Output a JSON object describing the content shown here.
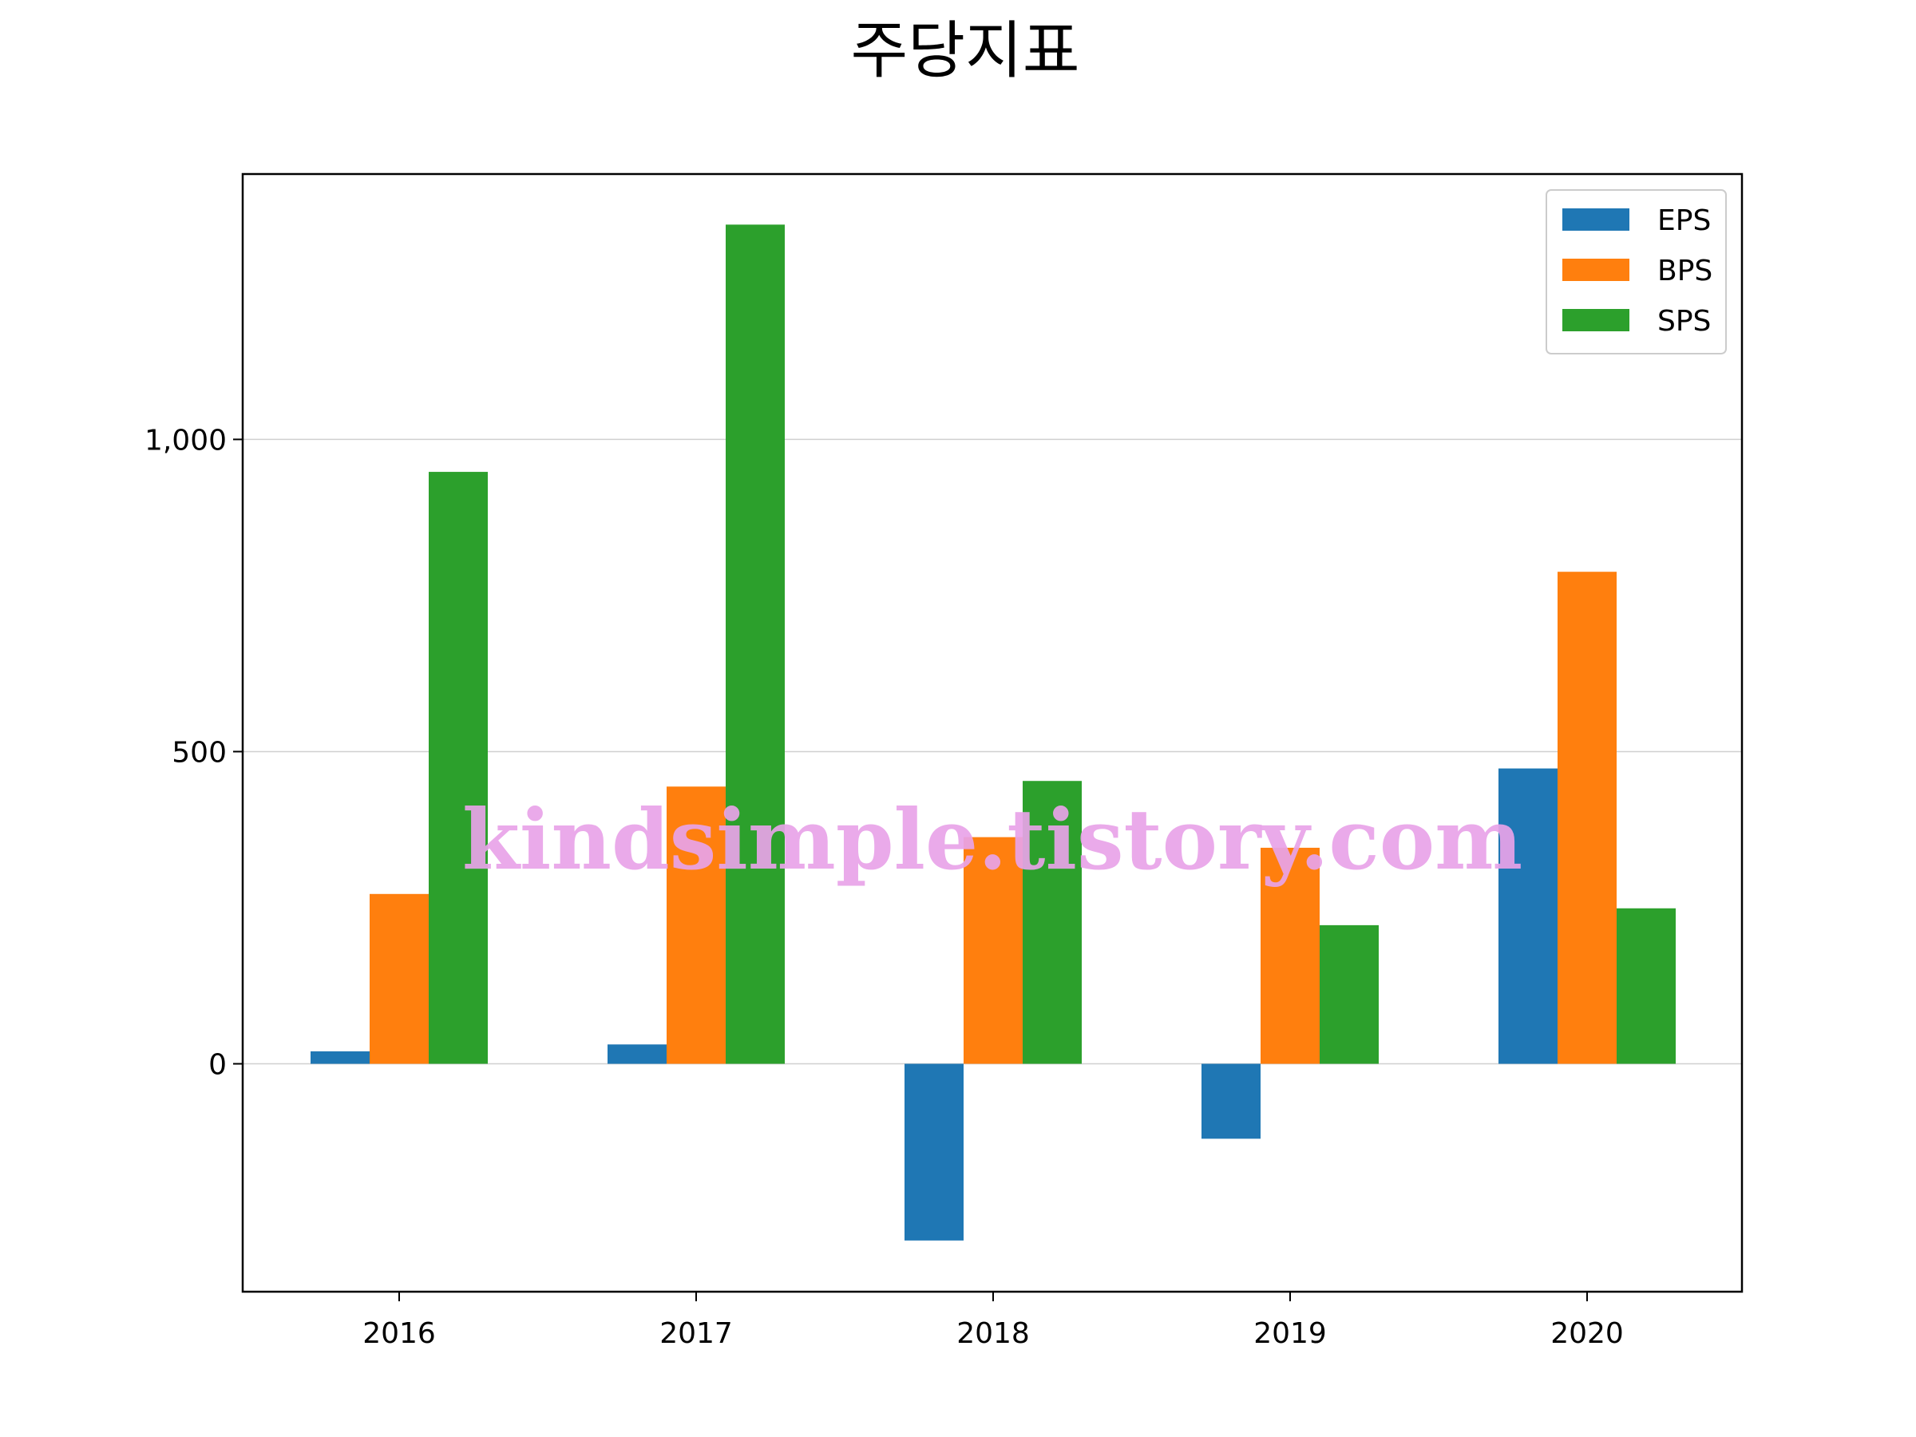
{
  "chart_data": {
    "type": "bar",
    "title": "주당지표",
    "xlabel": "",
    "ylabel": "",
    "categories": [
      "2016",
      "2017",
      "2018",
      "2019",
      "2020"
    ],
    "series": [
      {
        "name": "EPS",
        "color": "#1f77b4",
        "values": [
          20,
          31,
          -283,
          -120,
          473
        ]
      },
      {
        "name": "BPS",
        "color": "#ff7f0e",
        "values": [
          272,
          444,
          363,
          346,
          788
        ]
      },
      {
        "name": "SPS",
        "color": "#2ca02c",
        "values": [
          948,
          1344,
          453,
          222,
          249
        ]
      }
    ],
    "ylim": [
      -365,
      1425
    ],
    "yticks": [
      0,
      500,
      1000
    ],
    "ytick_labels": [
      "0",
      "500",
      "1,000"
    ],
    "grid": "horizontal",
    "legend_position": "top-right",
    "watermark": "kindsimple.tistory.com"
  }
}
